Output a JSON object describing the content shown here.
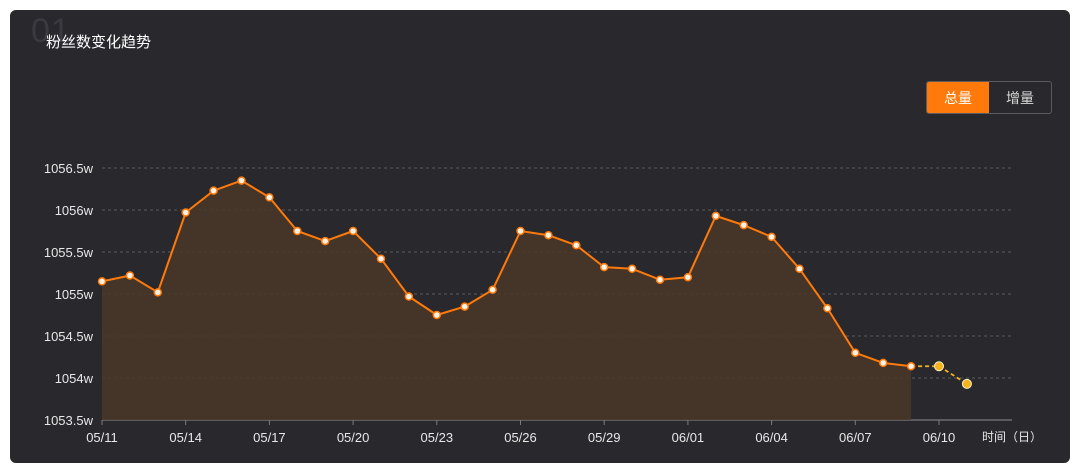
{
  "watermark": "01",
  "title": "粉丝数变化趋势",
  "toggle": {
    "total_label": "总量",
    "increment_label": "增量",
    "active": "total"
  },
  "colors": {
    "line": "#ff7a0a",
    "area": "#4a3628",
    "forecast": "#f5b21d",
    "grid": "#5a5a60",
    "axis_text": "#e8e8e8"
  },
  "chart_data": {
    "type": "line",
    "title": "粉丝数变化趋势",
    "xlabel": "时间（日）",
    "ylabel": "",
    "ylim": [
      1053.5,
      1056.6
    ],
    "yticks": [
      1053.5,
      1054,
      1054.5,
      1055,
      1055.5,
      1056,
      1056.5
    ],
    "ytick_labels": [
      "1053.5w",
      "1054w",
      "1054.5w",
      "1055w",
      "1055.5w",
      "1056w",
      "1056.5w"
    ],
    "x": [
      "05/11",
      "05/12",
      "05/13",
      "05/14",
      "05/15",
      "05/16",
      "05/17",
      "05/18",
      "05/19",
      "05/20",
      "05/21",
      "05/22",
      "05/23",
      "05/24",
      "05/25",
      "05/26",
      "05/27",
      "05/28",
      "05/29",
      "05/30",
      "05/31",
      "06/01",
      "06/02",
      "06/03",
      "06/04",
      "06/05",
      "06/06",
      "06/07",
      "06/08",
      "06/09",
      "06/10",
      "06/11"
    ],
    "xtick_labels": [
      "05/11",
      "05/14",
      "05/17",
      "05/20",
      "05/23",
      "05/26",
      "05/29",
      "06/01",
      "06/04",
      "06/07",
      "06/10"
    ],
    "series": [
      {
        "kind": "actual",
        "x": [
          "05/11",
          "05/12",
          "05/13",
          "05/14",
          "05/15",
          "05/16",
          "05/17",
          "05/18",
          "05/19",
          "05/20",
          "05/21",
          "05/22",
          "05/23",
          "05/24",
          "05/25",
          "05/26",
          "05/27",
          "05/28",
          "05/29",
          "05/30",
          "05/31",
          "06/01",
          "06/02",
          "06/03",
          "06/04",
          "06/05",
          "06/06",
          "06/07",
          "06/08",
          "06/09"
        ],
        "values": [
          1055.15,
          1055.22,
          1055.02,
          1055.97,
          1056.23,
          1056.35,
          1056.15,
          1055.75,
          1055.63,
          1055.75,
          1055.42,
          1054.97,
          1054.75,
          1054.85,
          1055.05,
          1055.75,
          1055.7,
          1055.58,
          1055.32,
          1055.3,
          1055.17,
          1055.2,
          1055.93,
          1055.82,
          1055.68,
          1055.3,
          1054.83,
          1054.3,
          1054.18,
          1054.14
        ]
      },
      {
        "kind": "forecast",
        "x": [
          "06/09",
          "06/10",
          "06/11"
        ],
        "values": [
          1054.14,
          1054.14,
          1053.93
        ]
      }
    ],
    "grid": true,
    "area_fill": true
  }
}
